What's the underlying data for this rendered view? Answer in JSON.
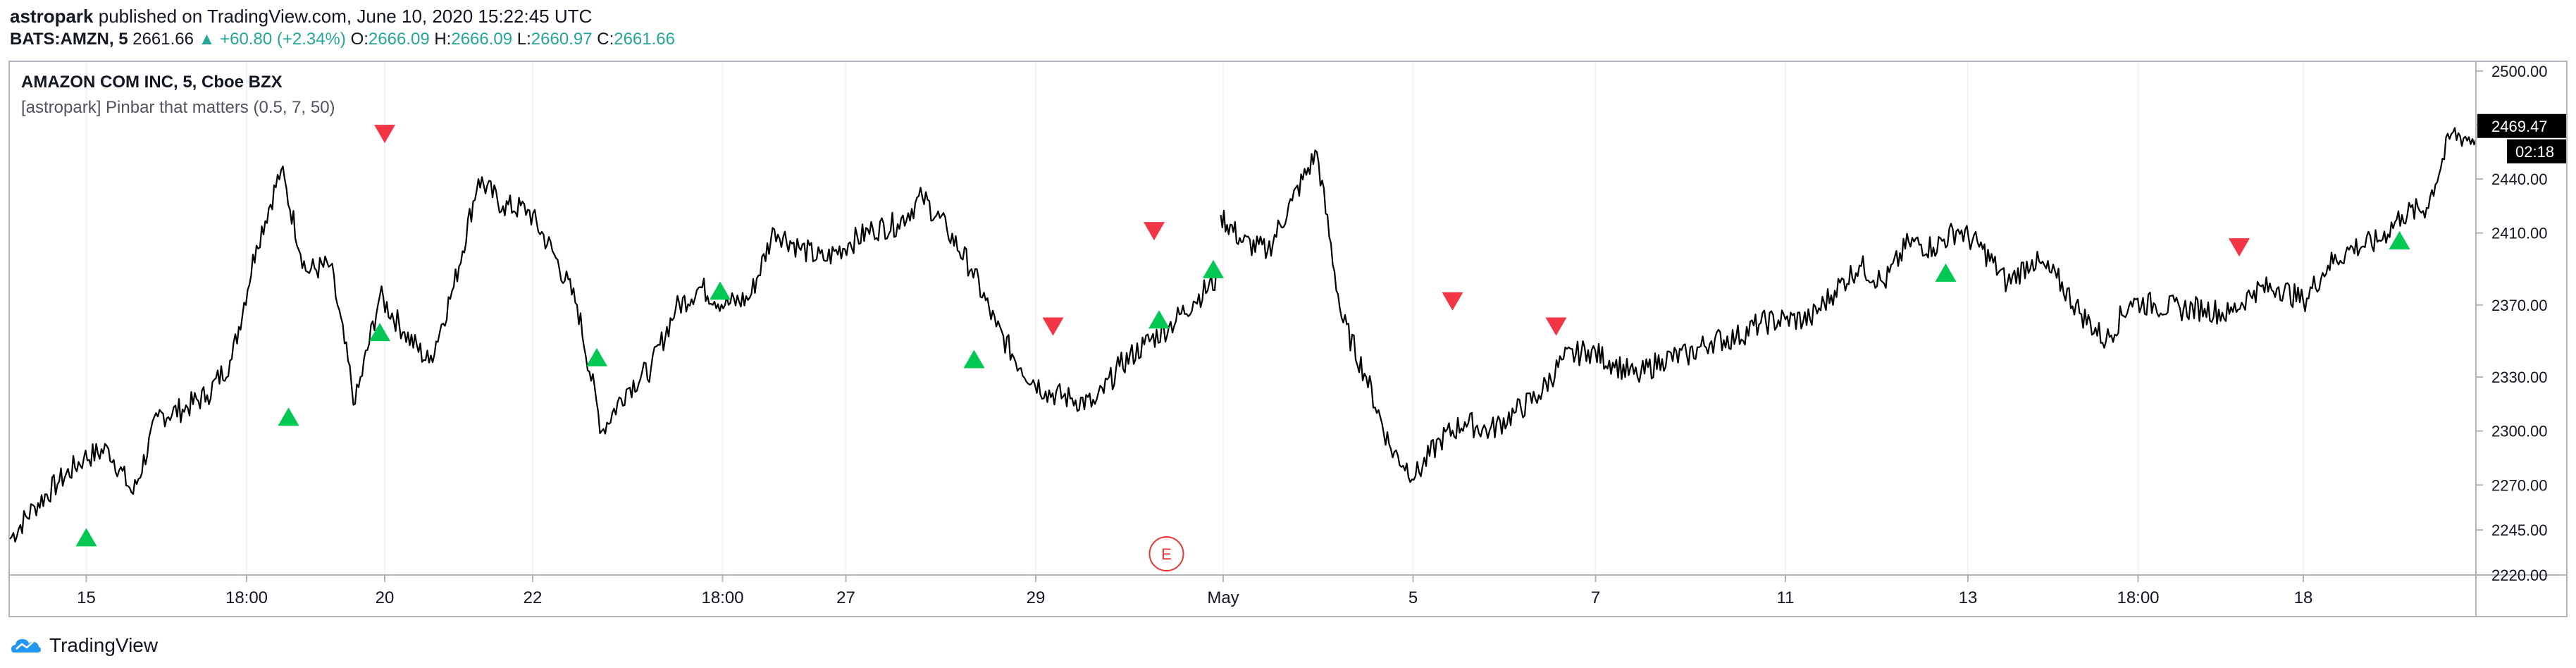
{
  "header": {
    "author": "astropark",
    "published_text": "published on TradingView.com, June 10, 2020 15:22:45 UTC",
    "symbol": "BATS:AMZN, 5",
    "last": "2661.66",
    "change": "+60.80 (+2.34%)",
    "o_label": "O:",
    "o_value": "2666.09",
    "h_label": "H:",
    "h_value": "2666.09",
    "l_label": "L:",
    "l_value": "2660.97",
    "c_label": "C:",
    "c_value": "2661.66"
  },
  "legend": {
    "title": "AMAZON COM INC, 5, Cboe BZX",
    "indicator": "[astropark] Pinbar that matters (0.5, 7, 50)"
  },
  "price_badge": "2469.47",
  "countdown_badge": "02:18",
  "earnings_marker": "E",
  "footer": {
    "brand": "TradingView"
  },
  "colors": {
    "up_arrow": "#00c853",
    "down_arrow": "#f23645",
    "price_line": "#000000",
    "badge_bg": "#000000",
    "earnings": "#e53935"
  },
  "chart_data": {
    "type": "line",
    "y_ticks": [
      "2500.00",
      "2470.00",
      "2440.00",
      "2410.00",
      "2370.00",
      "2330.00",
      "2300.00",
      "2270.00",
      "2245.00",
      "2220.00"
    ],
    "ylim": [
      2220,
      2505
    ],
    "x_ticks": [
      "15",
      "18:00",
      "20",
      "22",
      "18:00",
      "27",
      "29",
      "May",
      "5",
      "7",
      "11",
      "13",
      "18:00",
      "18"
    ],
    "x_range": [
      0,
      100
    ],
    "series": [
      {
        "x": [
          0,
          1,
          2,
          3,
          4,
          5,
          6,
          7,
          8,
          9,
          10,
          11,
          12,
          13,
          14,
          15,
          16,
          17,
          18,
          19,
          20,
          21,
          22,
          23,
          24,
          25,
          26,
          27,
          28,
          29,
          30,
          31,
          32,
          33,
          34,
          35,
          36,
          37,
          38,
          39,
          40,
          41,
          42,
          43,
          44,
          45,
          46,
          47,
          48,
          49
        ],
        "y": [
          2240,
          2258,
          2272,
          2285,
          2290,
          2265,
          2308,
          2312,
          2320,
          2340,
          2403,
          2445,
          2389,
          2392,
          2315,
          2375,
          2355,
          2338,
          2380,
          2440,
          2425,
          2423,
          2400,
          2370,
          2300,
          2323,
          2335,
          2368,
          2380,
          2370,
          2374,
          2412,
          2402,
          2395,
          2404,
          2412,
          2415,
          2430,
          2412,
          2390,
          2358,
          2335,
          2322,
          2318,
          2315,
          2336,
          2348,
          2358,
          2372,
          2385
        ]
      },
      {
        "x": [
          49.1,
          50,
          51,
          52,
          53,
          54,
          55,
          56,
          57,
          58,
          59,
          60,
          61,
          62,
          63,
          64,
          65,
          66,
          67,
          68,
          69,
          70,
          71,
          72,
          73,
          74,
          75,
          76,
          77,
          78,
          79,
          80,
          81,
          82,
          83,
          84,
          85,
          86,
          87,
          88,
          89,
          90,
          91,
          92,
          93,
          94,
          95,
          96,
          97,
          98,
          99,
          100
        ],
        "y": [
          2420,
          2405,
          2400,
          2428,
          2455,
          2363,
          2330,
          2290,
          2275,
          2295,
          2305,
          2300,
          2310,
          2320,
          2340,
          2345,
          2338,
          2330,
          2340,
          2342,
          2350,
          2352,
          2360,
          2362,
          2362,
          2378,
          2392,
          2382,
          2405,
          2402,
          2412,
          2401,
          2382,
          2395,
          2385,
          2365,
          2350,
          2372,
          2370,
          2368,
          2368,
          2365,
          2378,
          2380,
          2372,
          2392,
          2402,
          2405,
          2420,
          2424,
          2465,
          2462
        ]
      }
    ],
    "markers": [
      {
        "type": "up",
        "x": 3.1,
        "y": 2241
      },
      {
        "type": "up",
        "x": 11.3,
        "y": 2308
      },
      {
        "type": "down",
        "x": 15.2,
        "y": 2465
      },
      {
        "type": "up",
        "x": 15.0,
        "y": 2355
      },
      {
        "type": "up",
        "x": 23.8,
        "y": 2341
      },
      {
        "type": "up",
        "x": 28.8,
        "y": 2378
      },
      {
        "type": "up",
        "x": 39.1,
        "y": 2340
      },
      {
        "type": "down",
        "x": 42.3,
        "y": 2358
      },
      {
        "type": "down",
        "x": 46.4,
        "y": 2411
      },
      {
        "type": "up",
        "x": 46.6,
        "y": 2362
      },
      {
        "type": "up",
        "x": 48.8,
        "y": 2390
      },
      {
        "type": "down",
        "x": 58.5,
        "y": 2372
      },
      {
        "type": "down",
        "x": 62.7,
        "y": 2358
      },
      {
        "type": "up",
        "x": 78.5,
        "y": 2388
      },
      {
        "type": "down",
        "x": 90.4,
        "y": 2402
      },
      {
        "type": "up",
        "x": 96.9,
        "y": 2406
      }
    ],
    "earnings_x": 46.9,
    "last_price": 2469.47,
    "grid": false,
    "legend": "top-left"
  }
}
